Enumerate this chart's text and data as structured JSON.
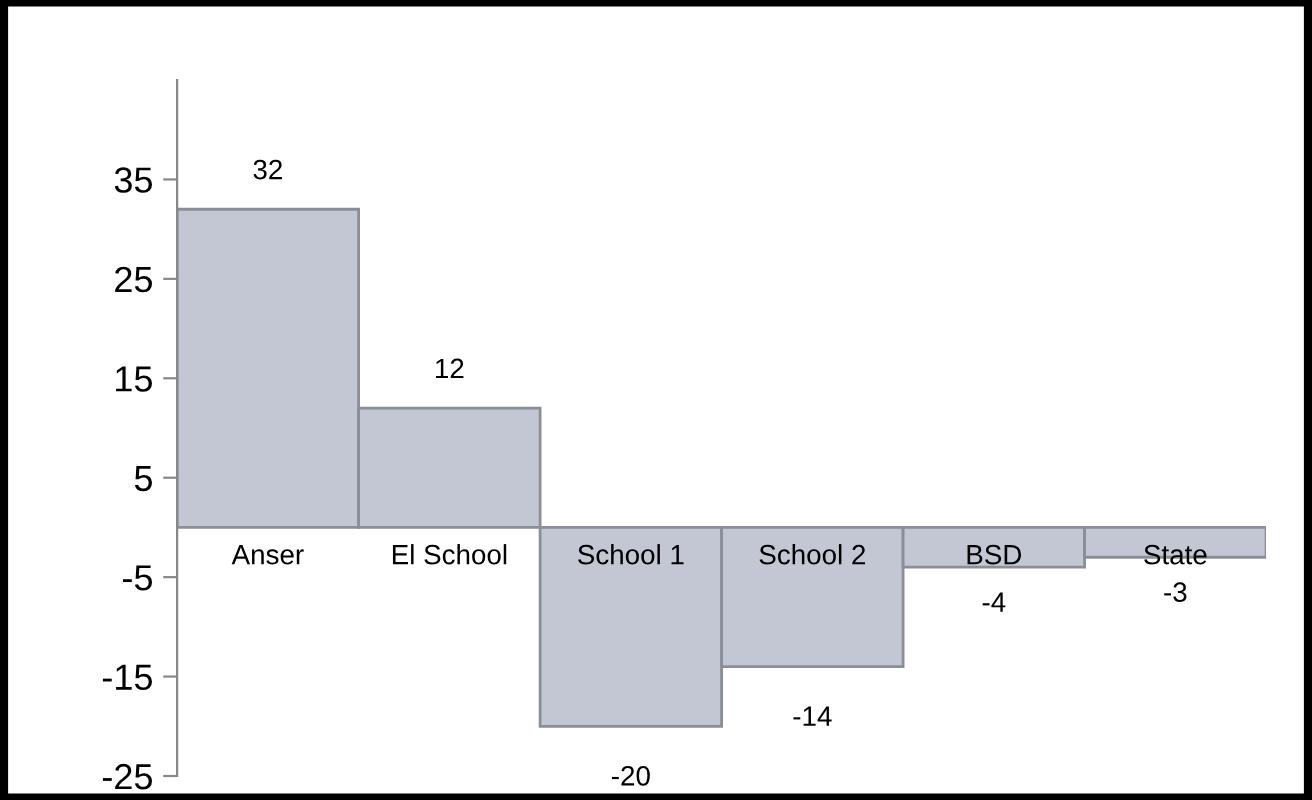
{
  "chart_data": {
    "type": "bar",
    "categories": [
      "Anser",
      "El School",
      "School 1",
      "School 2",
      "BSD",
      "State"
    ],
    "values": [
      32,
      12,
      -20,
      -14,
      -4,
      -3
    ],
    "color": "#c3c7d3",
    "ylim": [
      -25,
      45
    ],
    "yticks": [
      -25,
      -15,
      -5,
      5,
      15,
      25,
      35
    ],
    "grid": false,
    "data_labels": true
  }
}
